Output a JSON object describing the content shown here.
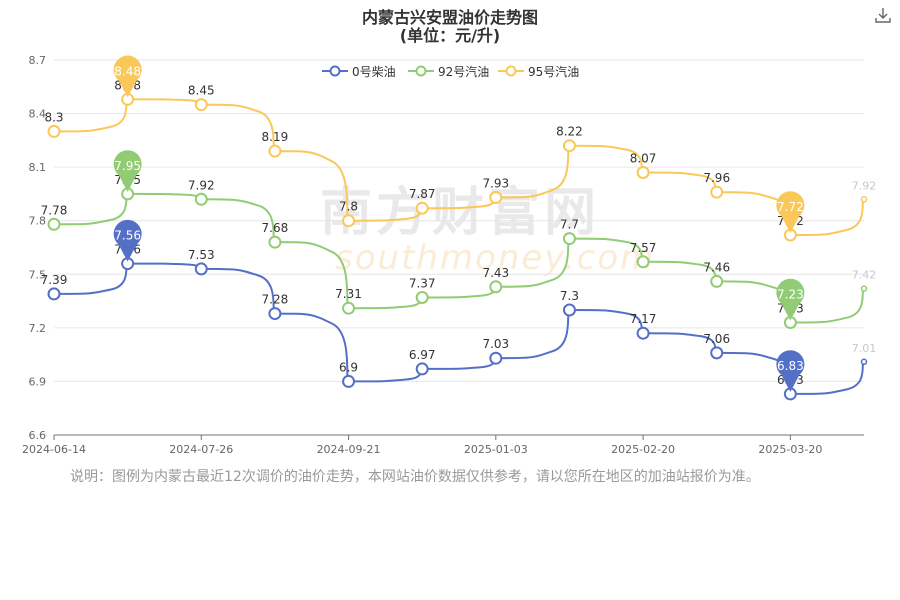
{
  "title": {
    "line1": "内蒙古兴安盟油价走势图",
    "line2": "(单位：元/升)"
  },
  "watermark": {
    "cn": "南方财富网",
    "en": "southmoney.com"
  },
  "note": "说明：图例为内蒙古最近12次调价的油价走势，本网站油价数据仅供参考，请以您所在地区的加油站报价为准。",
  "chart_data": {
    "type": "line",
    "title": "内蒙古兴安盟油价走势图",
    "subtitle": "(单位：元/升)",
    "xlabel": "",
    "ylabel": "",
    "ylim": [
      6.6,
      8.7
    ],
    "yticks": [
      "6.6",
      "6.9",
      "7.2",
      "7.5",
      "7.8",
      "8.1",
      "8.4",
      "8.7"
    ],
    "x_tick_labels": [
      "2024-06-14",
      "2024-07-26",
      "2024-09-21",
      "2025-01-03",
      "2025-02-20",
      "2025-03-20"
    ],
    "grid": true,
    "legend_position": "top-center",
    "series": [
      {
        "name": "0号柴油",
        "color": "#5470c6",
        "values": [
          7.39,
          7.56,
          7.53,
          7.28,
          6.9,
          6.97,
          7.03,
          7.3,
          7.17,
          7.06,
          6.83
        ],
        "end_value": 7.01,
        "max_pin": "7.56",
        "min_pin": "6.83"
      },
      {
        "name": "92号汽油",
        "color": "#91cc75",
        "values": [
          7.78,
          7.95,
          7.92,
          7.68,
          7.31,
          7.37,
          7.43,
          7.7,
          7.57,
          7.46,
          7.23
        ],
        "end_value": 7.42,
        "max_pin": "7.95",
        "min_pin": "7.23"
      },
      {
        "name": "95号汽油",
        "color": "#fac858",
        "values": [
          8.3,
          8.48,
          8.45,
          8.19,
          7.8,
          7.87,
          7.93,
          8.22,
          8.07,
          7.96,
          7.72
        ],
        "end_value": 7.92,
        "max_pin": "8.48",
        "min_pin": "7.72"
      }
    ]
  },
  "toolbar": {
    "download_icon": "download-icon"
  }
}
